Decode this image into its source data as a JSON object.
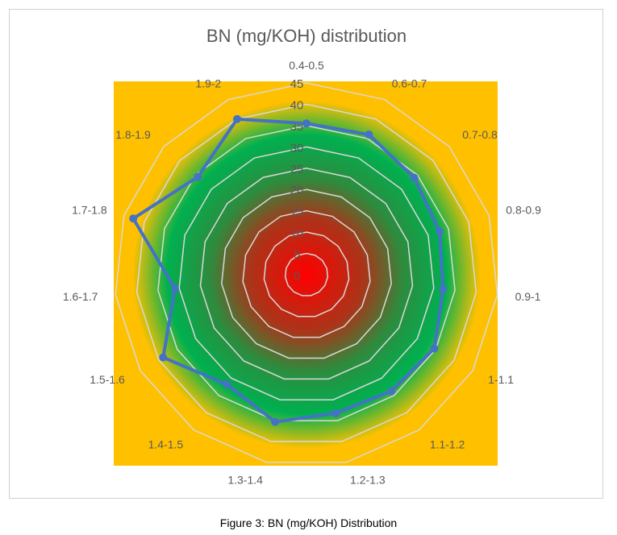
{
  "caption": "Figure 3: BN (mg/KOH) Distribution",
  "chart_data": {
    "type": "radar",
    "title": "BN (mg/KOH) distribution",
    "categories": [
      "0.4-0.5",
      "0.6-0.7",
      "0.7-0.8",
      "0.8-0.9",
      "0.9-1",
      "1-1.1",
      "1.1-1.2",
      "1.2-1.3",
      "1.3-1.4",
      "1.4-1.5",
      "1.5-1.6",
      "1.6-1.7",
      "1.7-1.8",
      "1.8-1.9",
      "1.9-2"
    ],
    "values": [
      35.5,
      36,
      34,
      32.8,
      32.2,
      34.6,
      33.8,
      33.2,
      35.3,
      31.8,
      38.8,
      31,
      42.7,
      34.3,
      40
    ],
    "rlim": [
      0,
      45
    ],
    "ticks": [
      0,
      5,
      10,
      15,
      20,
      25,
      30,
      35,
      40,
      45
    ],
    "grid": true,
    "legend": "none",
    "colors": {
      "series": "#4472c4",
      "background_outer": "#ffc000",
      "background_mid": "#00b050",
      "background_center": "#ff0000",
      "grid": "#d9d9d9"
    }
  }
}
